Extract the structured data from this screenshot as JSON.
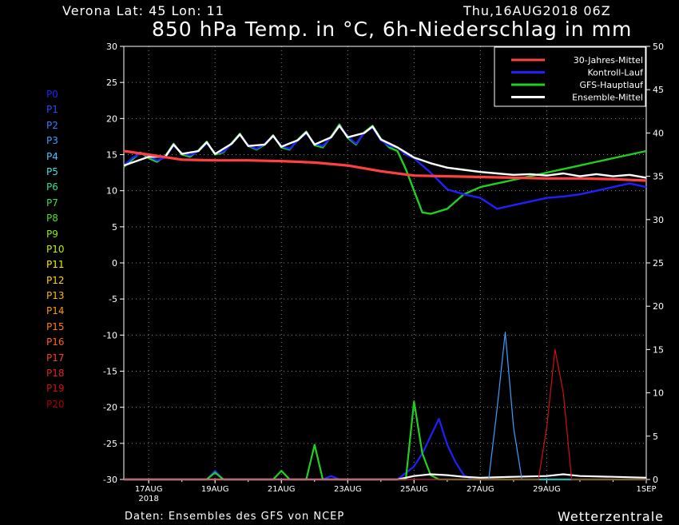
{
  "header": {
    "location": "Verona   Lat: 45 Lon: 11",
    "runtime": "Thu,16AUG2018 06Z",
    "title": "850 hPa Temp. in °C, 6h-Niederschlag in mm"
  },
  "footer": {
    "source": "Daten: Ensembles des GFS von NCEP",
    "brand": "Wetterzentrale"
  },
  "members": [
    {
      "label": "P0",
      "color": "#2020ff"
    },
    {
      "label": "P1",
      "color": "#2a4cff"
    },
    {
      "label": "P2",
      "color": "#3a78ff"
    },
    {
      "label": "P3",
      "color": "#3aa0ff"
    },
    {
      "label": "P4",
      "color": "#40c4ff"
    },
    {
      "label": "P5",
      "color": "#40e0e0"
    },
    {
      "label": "P6",
      "color": "#30e090"
    },
    {
      "label": "P7",
      "color": "#30e050"
    },
    {
      "label": "P8",
      "color": "#50e020"
    },
    {
      "label": "P9",
      "color": "#90f000"
    },
    {
      "label": "P10",
      "color": "#c0f000"
    },
    {
      "label": "P11",
      "color": "#f0f000"
    },
    {
      "label": "P12",
      "color": "#ffd400"
    },
    {
      "label": "P13",
      "color": "#ffb400"
    },
    {
      "label": "P14",
      "color": "#ff9800"
    },
    {
      "label": "P15",
      "color": "#ff7c00"
    },
    {
      "label": "P16",
      "color": "#ff6020"
    },
    {
      "label": "P17",
      "color": "#f04020"
    },
    {
      "label": "P18",
      "color": "#e02020"
    },
    {
      "label": "P19",
      "color": "#d01010"
    },
    {
      "label": "P20",
      "color": "#b00000"
    }
  ],
  "chart_data": {
    "type": "line",
    "title": "850 hPa Temp. in °C, 6h-Niederschlag in mm",
    "x_ticks": [
      "17AUG",
      "19AUG",
      "21AUG",
      "23AUG",
      "25AUG",
      "27AUG",
      "29AUG",
      "1SEP"
    ],
    "x_subtick": "2018",
    "x_range_days": [
      16.25,
      32.0
    ],
    "x_tick_days": [
      17,
      19,
      21,
      23,
      25,
      27,
      29,
      32
    ],
    "y_left_range": [
      -30,
      30
    ],
    "y_left_ticks": [
      -30,
      -25,
      -20,
      -15,
      -10,
      -5,
      0,
      5,
      10,
      15,
      20,
      25,
      30
    ],
    "y_right_range": [
      0,
      50
    ],
    "y_right_ticks": [
      0,
      5,
      10,
      15,
      20,
      25,
      30,
      35,
      40,
      45,
      50
    ],
    "grid": true,
    "legend_position": "top-right",
    "legend": [
      {
        "name": "30-Jahres-Mittel",
        "color": "#ff4040"
      },
      {
        "name": "Kontroll-Lauf",
        "color": "#2020ff"
      },
      {
        "name": "GFS-Hauptlauf",
        "color": "#20d020"
      },
      {
        "name": "Ensemble-Mittel",
        "color": "#ffffff"
      }
    ],
    "temperature_series": [
      {
        "name": "30-Jahres-Mittel",
        "color": "#ff4040",
        "days": [
          16.25,
          17,
          18,
          19,
          20,
          21,
          22,
          23,
          24,
          25,
          26,
          27,
          28,
          29,
          30,
          31,
          32
        ],
        "values": [
          15.5,
          15,
          14.3,
          14.2,
          14.2,
          14.1,
          13.9,
          13.5,
          12.7,
          12.1,
          12.0,
          11.9,
          11.8,
          11.7,
          11.7,
          11.6,
          11.4
        ]
      },
      {
        "name": "Kontroll-Lauf",
        "color": "#2020ff",
        "days": [
          16.25,
          16.5,
          16.75,
          17,
          17.25,
          17.5,
          17.75,
          18,
          18.25,
          18.5,
          18.75,
          19,
          19.25,
          19.5,
          19.75,
          20,
          20.25,
          20.5,
          20.75,
          21,
          21.25,
          21.5,
          21.75,
          22,
          22.25,
          22.5,
          22.75,
          23,
          23.25,
          23.5,
          23.75,
          24,
          24.25,
          24.5,
          24.75,
          25,
          25.5,
          26,
          26.5,
          27,
          27.5,
          28,
          28.5,
          29,
          29.5,
          30,
          30.5,
          31,
          31.5,
          32
        ],
        "values": [
          13.5,
          14.5,
          15.2,
          14.8,
          14.2,
          14.6,
          16.3,
          15.2,
          14.9,
          15.5,
          16.6,
          15.2,
          15.4,
          16.5,
          17.8,
          16.3,
          15.8,
          16.5,
          17.6,
          16.2,
          15.8,
          17.0,
          18.0,
          16.5,
          16.2,
          17.4,
          19.0,
          17.5,
          16.5,
          18.0,
          18.8,
          17.0,
          16.2,
          16.0,
          15.0,
          14.5,
          12.5,
          10.2,
          9.5,
          9.0,
          7.5,
          8.0,
          8.5,
          9.0,
          9.2,
          9.5,
          10.0,
          10.5,
          11.0,
          10.5
        ]
      },
      {
        "name": "GFS-Hauptlauf",
        "color": "#20d020",
        "days": [
          16.25,
          16.5,
          16.75,
          17,
          17.25,
          17.5,
          17.75,
          18,
          18.25,
          18.5,
          18.75,
          19,
          19.25,
          19.5,
          19.75,
          20,
          20.25,
          20.5,
          20.75,
          21,
          21.25,
          21.5,
          21.75,
          22,
          22.25,
          22.5,
          22.75,
          23,
          23.25,
          23.5,
          23.75,
          24,
          24.25,
          24.5,
          24.75,
          25,
          25.25,
          25.5,
          26,
          26.5,
          27,
          27.5,
          28,
          28.5,
          29,
          29.5,
          30,
          30.5,
          31,
          31.5,
          32
        ],
        "values": [
          13.3,
          14.3,
          15.3,
          14.5,
          14.0,
          14.8,
          16.5,
          15.0,
          14.7,
          15.6,
          16.8,
          15.0,
          15.3,
          16.6,
          17.9,
          16.2,
          15.7,
          16.4,
          17.7,
          16.0,
          15.7,
          17.1,
          18.2,
          16.3,
          16.0,
          17.5,
          19.2,
          17.3,
          16.4,
          18.1,
          19.0,
          17.2,
          16.0,
          15.5,
          13.0,
          10.0,
          7.0,
          6.8,
          7.5,
          9.5,
          10.5,
          11.0,
          11.5,
          12.0,
          12.5,
          13.0,
          13.5,
          14.0,
          14.5,
          15.0,
          15.5
        ]
      },
      {
        "name": "Ensemble-Mittel",
        "color": "#ffffff",
        "days": [
          16.25,
          17,
          17.5,
          17.75,
          18,
          18.5,
          18.75,
          19,
          19.5,
          19.75,
          20,
          20.5,
          20.75,
          21,
          21.5,
          21.75,
          22,
          22.5,
          22.75,
          23,
          23.5,
          23.75,
          24,
          24.5,
          25,
          25.5,
          26,
          26.5,
          27,
          27.5,
          28,
          28.5,
          29,
          29.5,
          30,
          30.5,
          31,
          31.5,
          32
        ],
        "values": [
          13.5,
          14.7,
          14.7,
          16.4,
          15.1,
          15.5,
          16.7,
          15.1,
          16.5,
          17.8,
          16.2,
          16.4,
          17.6,
          16.1,
          17.0,
          18.1,
          16.4,
          17.4,
          19.0,
          17.4,
          18.0,
          18.9,
          17.1,
          16.0,
          14.6,
          13.8,
          13.2,
          12.9,
          12.6,
          12.4,
          12.2,
          12.3,
          12.1,
          12.4,
          12.0,
          12.3,
          12.0,
          12.2,
          11.8
        ]
      }
    ],
    "precipitation_series": [
      {
        "name": "Kontroll-Lauf",
        "color": "#2020ff",
        "days": [
          16.25,
          18.75,
          19.0,
          19.25,
          22.25,
          22.5,
          22.75,
          24.5,
          25.0,
          25.25,
          25.5,
          25.75,
          26.0,
          26.25,
          26.5,
          26.75,
          27.0,
          32.0
        ],
        "values_mm": [
          0,
          0,
          1.0,
          0,
          0,
          0.4,
          0,
          0,
          1.5,
          3.0,
          5.0,
          7.0,
          4.0,
          2.0,
          0.5,
          0,
          0,
          0
        ]
      },
      {
        "name": "GFS-Hauptlauf",
        "color": "#20d020",
        "days": [
          16.25,
          18.75,
          19.0,
          19.25,
          20.75,
          21.0,
          21.25,
          21.75,
          22.0,
          22.25,
          24.75,
          25.0,
          25.25,
          25.5,
          25.75,
          26.0,
          26.5,
          32.0
        ],
        "values_mm": [
          0,
          0,
          0.8,
          0,
          0,
          1.0,
          0,
          0,
          4.0,
          0,
          0,
          9.0,
          3.0,
          0.5,
          0,
          0,
          0,
          0
        ]
      },
      {
        "name": "Ensemble-Mittel",
        "color": "#ffffff",
        "days": [
          16.25,
          24.5,
          25.0,
          25.5,
          26.0,
          26.5,
          27.0,
          28.0,
          29.0,
          29.5,
          30.0,
          31.0,
          32.0
        ],
        "values_mm": [
          0,
          0,
          0.4,
          0.6,
          0.5,
          0.3,
          0.2,
          0.3,
          0.4,
          0.6,
          0.4,
          0.3,
          0.2
        ]
      },
      {
        "name": "P3",
        "color": "#3aa0ff",
        "days": [
          16.25,
          27.25,
          27.5,
          27.75,
          28.0,
          28.25,
          32.0
        ],
        "values_mm": [
          0,
          0,
          8.0,
          17.0,
          6.0,
          0,
          0
        ]
      },
      {
        "name": "P19",
        "color": "#d01010",
        "days": [
          16.25,
          28.75,
          29.0,
          29.25,
          29.5,
          29.75,
          32.0
        ],
        "values_mm": [
          0,
          0,
          6.0,
          15.0,
          10.0,
          0,
          0
        ]
      }
    ]
  }
}
